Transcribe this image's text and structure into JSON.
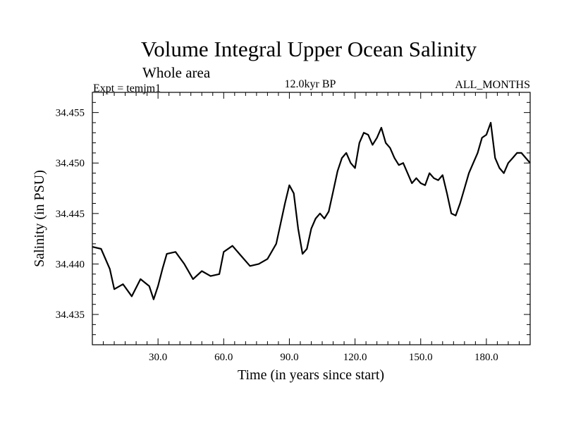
{
  "chart_data": {
    "type": "line",
    "title": "Volume Integral Upper Ocean Salinity",
    "subtitle": "Whole area",
    "experiment": "Expt = temjm1",
    "period": "12.0kyr BP",
    "months": "ALL_MONTHS",
    "xlabel": "Time (in years since start)",
    "ylabel": "Salinity (in PSU)",
    "xlim": [
      0,
      200
    ],
    "ylim": [
      34.432,
      34.457
    ],
    "xticks": [
      30,
      60,
      90,
      120,
      150,
      180
    ],
    "xtick_labels": [
      "30.0",
      "60.0",
      "90.0",
      "120.0",
      "150.0",
      "180.0"
    ],
    "yticks": [
      34.435,
      34.44,
      34.445,
      34.45,
      34.455
    ],
    "ytick_labels": [
      "34.435",
      "34.440",
      "34.445",
      "34.450",
      "34.455"
    ],
    "series": [
      {
        "name": "Salinity",
        "x": [
          0,
          4,
          8,
          10,
          14,
          18,
          22,
          26,
          28,
          30,
          32,
          34,
          38,
          42,
          46,
          50,
          54,
          58,
          60,
          64,
          68,
          72,
          76,
          80,
          84,
          86,
          88,
          90,
          92,
          94,
          96,
          98,
          100,
          102,
          104,
          106,
          108,
          110,
          112,
          114,
          116,
          118,
          120,
          122,
          124,
          126,
          128,
          130,
          132,
          134,
          136,
          138,
          140,
          142,
          144,
          146,
          148,
          150,
          152,
          154,
          156,
          158,
          160,
          162,
          164,
          166,
          168,
          170,
          172,
          174,
          176,
          178,
          180,
          182,
          184,
          186,
          188,
          190,
          192,
          194,
          196,
          198,
          200
        ],
        "y": [
          34.4417,
          34.4415,
          34.4395,
          34.4375,
          34.438,
          34.4368,
          34.4385,
          34.4378,
          34.4365,
          34.4378,
          34.4395,
          34.441,
          34.4412,
          34.44,
          34.4385,
          34.4393,
          34.4388,
          34.439,
          34.4412,
          34.4418,
          34.4408,
          34.4398,
          34.44,
          34.4405,
          34.442,
          34.444,
          34.446,
          34.4478,
          34.447,
          34.4435,
          34.441,
          34.4415,
          34.4435,
          34.4445,
          34.445,
          34.4445,
          34.4452,
          34.4472,
          34.4492,
          34.4505,
          34.451,
          34.45,
          34.4495,
          34.452,
          34.453,
          34.4528,
          34.4518,
          34.4525,
          34.4535,
          34.452,
          34.4515,
          34.4505,
          34.4498,
          34.45,
          34.449,
          34.448,
          34.4485,
          34.448,
          34.4478,
          34.449,
          34.4485,
          34.4483,
          34.4488,
          34.447,
          34.445,
          34.4448,
          34.446,
          34.4475,
          34.449,
          34.45,
          34.451,
          34.4525,
          34.4528,
          34.454,
          34.4505,
          34.4495,
          34.449,
          34.45,
          34.4505,
          34.451,
          34.451,
          34.4505,
          34.45
        ]
      }
    ]
  }
}
